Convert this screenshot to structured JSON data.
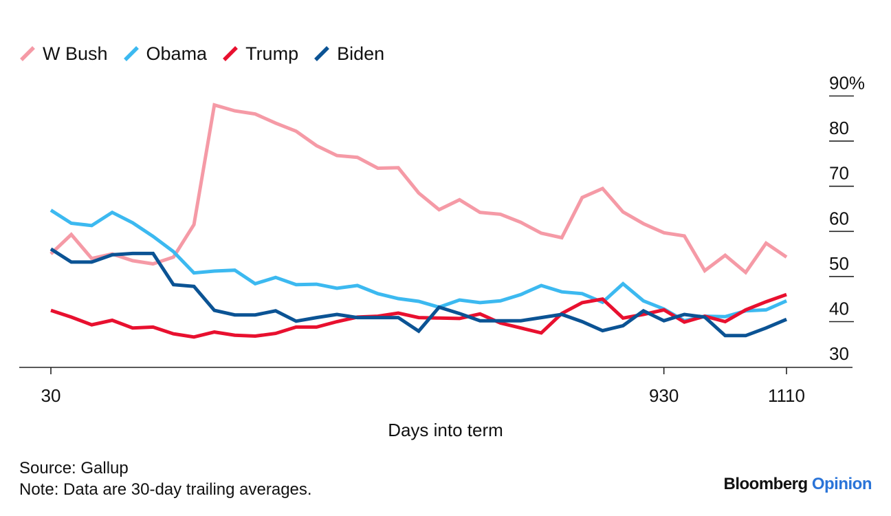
{
  "chart_data": {
    "type": "line",
    "title": "",
    "xlabel": "Days into term",
    "ylabel": "",
    "x_ticks": [
      30,
      930,
      1110
    ],
    "y_ticks": [
      30,
      40,
      50,
      60,
      70,
      80,
      90
    ],
    "y_tick_labels": [
      "30",
      "40",
      "50",
      "60",
      "70",
      "80",
      "90%"
    ],
    "xlim": [
      30,
      1180
    ],
    "ylim": [
      26,
      90
    ],
    "grid": false,
    "legend_position": "top-left",
    "x": [
      30,
      60,
      90,
      120,
      150,
      180,
      210,
      240,
      270,
      300,
      330,
      360,
      390,
      420,
      450,
      480,
      510,
      540,
      570,
      600,
      630,
      660,
      690,
      720,
      750,
      780,
      810,
      840,
      870,
      900,
      930,
      960,
      990,
      1020,
      1050,
      1080,
      1110
    ],
    "series": [
      {
        "name": "W Bush",
        "color": "#f59aa6",
        "values": [
          55,
          59.3,
          54,
          55,
          53.5,
          52.8,
          54.3,
          61.5,
          88,
          86.7,
          86,
          84,
          82.2,
          79,
          76.8,
          76.4,
          74,
          74.1,
          68.5,
          64.8,
          67,
          64.2,
          63.8,
          62,
          59.6,
          58.6,
          67.5,
          69.5,
          64.3,
          61.7,
          59.7,
          59,
          51.3,
          54.7,
          50.9,
          57.4,
          54.3
        ]
      },
      {
        "name": "Obama",
        "color": "#3cb9f0",
        "values": [
          64.7,
          61.8,
          61.3,
          64.2,
          61.9,
          58.9,
          55.5,
          50.8,
          51.2,
          51.4,
          48.4,
          49.8,
          48.2,
          48.3,
          47.4,
          48,
          46.2,
          45.1,
          44.5,
          43.2,
          44.8,
          44.2,
          44.6,
          46,
          48,
          46.6,
          46.2,
          44.3,
          48.4,
          44.6,
          42.8,
          40.2,
          41.2,
          41.1,
          42.4,
          42.6,
          44.6
        ]
      },
      {
        "name": "Trump",
        "color": "#e8102f",
        "values": [
          42.5,
          41,
          39.3,
          40.3,
          38.6,
          38.8,
          37.3,
          36.6,
          37.7,
          37,
          36.8,
          37.4,
          38.8,
          38.8,
          40,
          41,
          41.2,
          41.9,
          40.9,
          40.8,
          40.7,
          41.7,
          39.7,
          38.6,
          37.5,
          41.8,
          44.2,
          45,
          40.8,
          41.6,
          42.6,
          39.9,
          41.2,
          40,
          42.6,
          44.4,
          46
        ]
      },
      {
        "name": "Biden",
        "color": "#0b5394",
        "values": [
          56.1,
          53.2,
          53.2,
          54.8,
          55.1,
          55.1,
          48.2,
          47.8,
          42.5,
          41.5,
          41.5,
          42.4,
          40.1,
          40.9,
          41.6,
          40.9,
          40.9,
          40.9,
          37.9,
          43.2,
          41.8,
          40.2,
          40.2,
          40.2,
          40.9,
          41.6,
          40,
          38,
          39.1,
          42.4,
          40.2,
          41.6,
          41,
          36.9,
          36.9,
          38.6,
          40.5
        ]
      }
    ]
  },
  "legend": [
    {
      "label": "W Bush",
      "color": "#f59aa6"
    },
    {
      "label": "Obama",
      "color": "#3cb9f0"
    },
    {
      "label": "Trump",
      "color": "#e8102f"
    },
    {
      "label": "Biden",
      "color": "#0b5394"
    }
  ],
  "footer": {
    "source": "Source: Gallup",
    "note": "Note: Data are 30-day trailing averages."
  },
  "brand": {
    "name": "Bloomberg",
    "section": "Opinion"
  }
}
